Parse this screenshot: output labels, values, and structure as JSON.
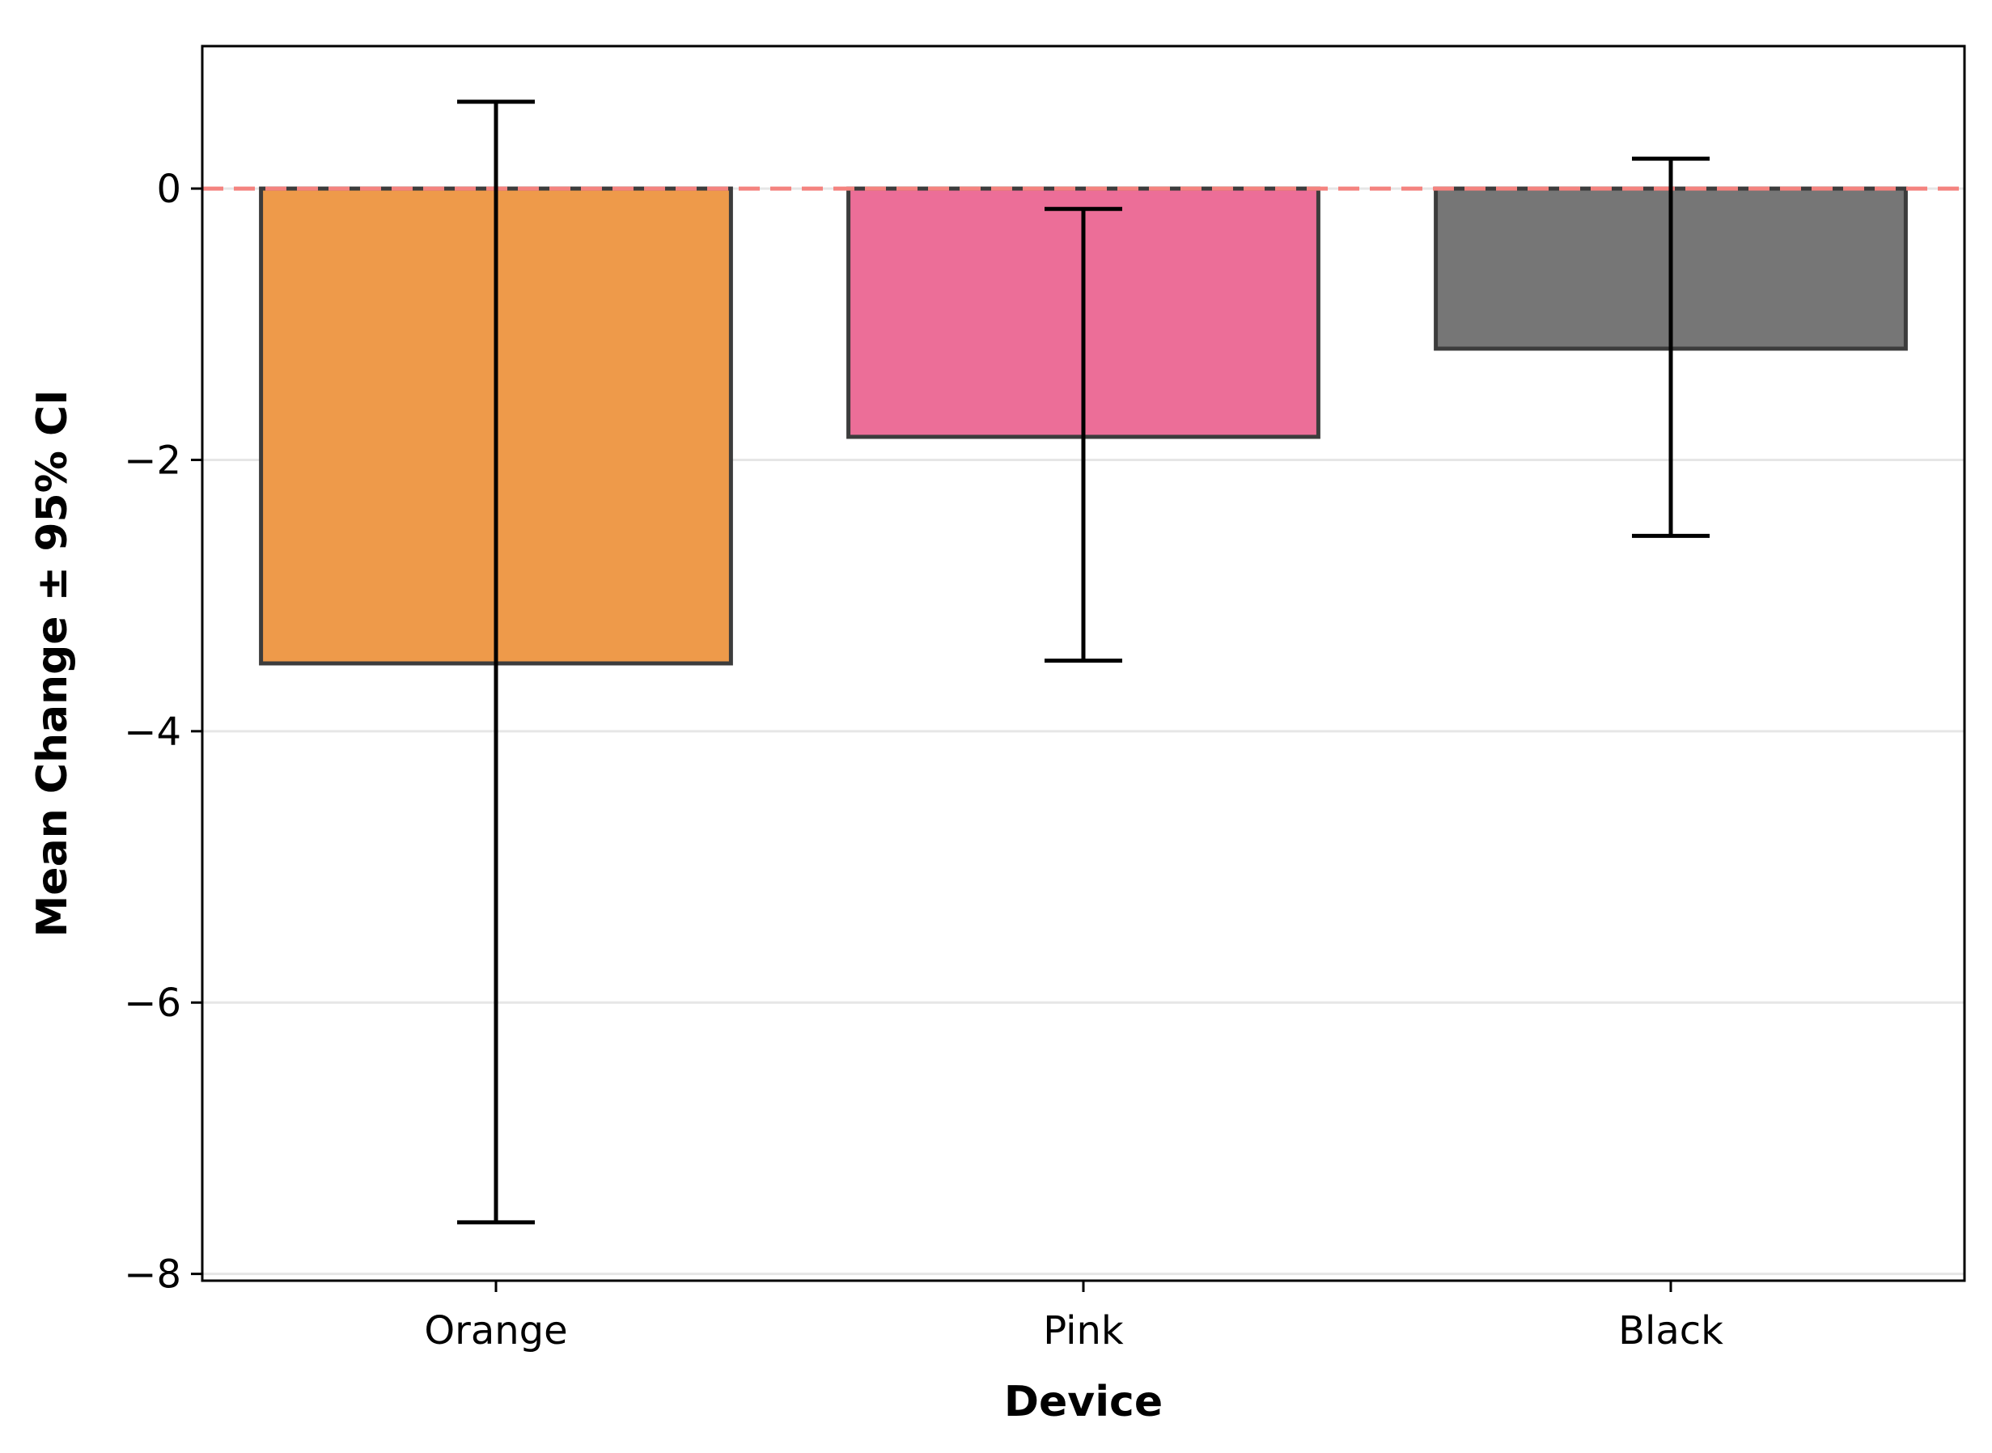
{
  "chart_data": {
    "type": "bar",
    "title": "",
    "xlabel": "Device",
    "ylabel": "Mean Change ± 95% CI",
    "categories": [
      "Orange",
      "Pink",
      "Black"
    ],
    "values": [
      -3.5,
      -1.83,
      -1.18
    ],
    "ci_upper": [
      0.64,
      -0.15,
      0.22
    ],
    "ci_lower": [
      -7.62,
      -3.48,
      -2.56
    ],
    "colors": [
      "#EE9A4A",
      "#EC6E98",
      "#767676"
    ],
    "ylim": [
      -8.05,
      1.05
    ],
    "yticks": [
      0,
      -2,
      -4,
      -6,
      -8
    ],
    "ytick_labels": [
      "0",
      "−2",
      "−4",
      "−6",
      "−8"
    ],
    "reference_line": {
      "value": 0,
      "color": "#F4837F",
      "style": "dashed"
    },
    "grid": "horizontal, light gray",
    "legend": "none"
  }
}
